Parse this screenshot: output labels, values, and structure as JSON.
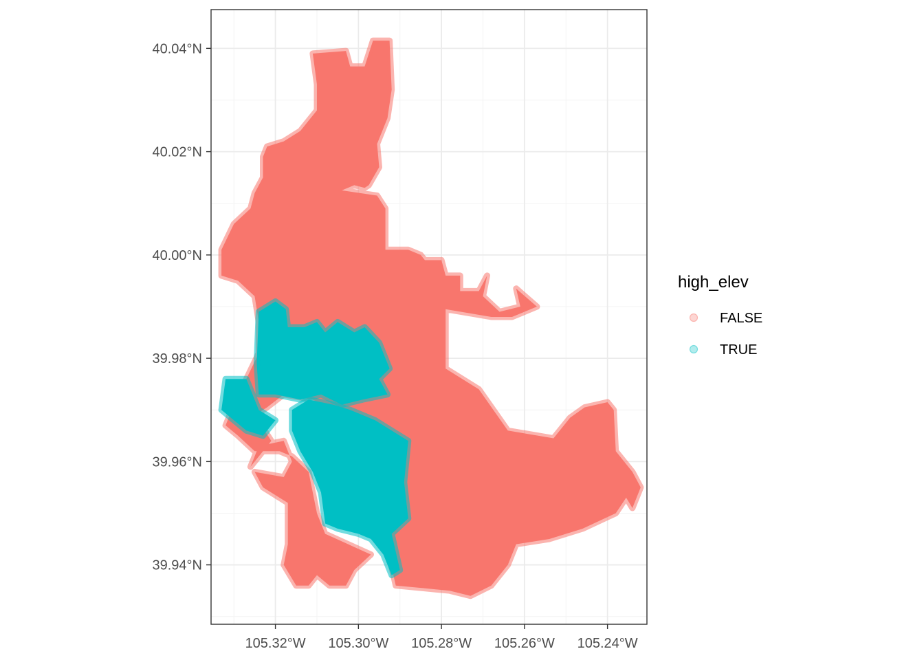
{
  "chart_data": {
    "type": "scatter",
    "title": "",
    "xlabel": "",
    "ylabel": "",
    "xlim": [
      -105.3355,
      -105.2305
    ],
    "ylim": [
      39.9285,
      40.0475
    ],
    "x_ticks": [
      {
        "value": -105.32,
        "label": "105.32°W"
      },
      {
        "value": -105.3,
        "label": "105.30°W"
      },
      {
        "value": -105.28,
        "label": "105.28°W"
      },
      {
        "value": -105.26,
        "label": "105.26°W"
      },
      {
        "value": -105.24,
        "label": "105.24°W"
      }
    ],
    "y_ticks": [
      {
        "value": 39.94,
        "label": "39.94°N"
      },
      {
        "value": 39.96,
        "label": "39.96°N"
      },
      {
        "value": 39.98,
        "label": "39.98°N"
      },
      {
        "value": 40.0,
        "label": "40.00°N"
      },
      {
        "value": 40.02,
        "label": "40.02°N"
      },
      {
        "value": 40.04,
        "label": "40.04°N"
      }
    ],
    "grid": true,
    "legend": {
      "title": "high_elev",
      "position": "right",
      "entries": [
        {
          "label": "FALSE",
          "color": "#F8766D"
        },
        {
          "label": "TRUE",
          "color": "#00BFC4"
        }
      ]
    },
    "series": [
      {
        "name": "FALSE",
        "color": "#F8766D",
        "regions": [
          [
            [
              -105.311,
              40.039
            ],
            [
              -105.303,
              40.0395
            ],
            [
              -105.302,
              40.0365
            ],
            [
              -105.2985,
              40.0365
            ],
            [
              -105.2965,
              40.0415
            ],
            [
              -105.2925,
              40.0415
            ],
            [
              -105.292,
              40.032
            ],
            [
              -105.293,
              40.0265
            ],
            [
              -105.2955,
              40.0215
            ],
            [
              -105.295,
              40.017
            ],
            [
              -105.2975,
              40.0135
            ],
            [
              -105.2985,
              40.013
            ],
            [
              -105.301,
              40.0135
            ],
            [
              -105.304,
              40.0125
            ],
            [
              -105.2955,
              40.0115
            ],
            [
              -105.2935,
              40.009
            ],
            [
              -105.2935,
              40.001
            ],
            [
              -105.288,
              40.001
            ],
            [
              -105.285,
              40.0
            ],
            [
              -105.284,
              39.999
            ],
            [
              -105.28,
              39.999
            ],
            [
              -105.279,
              39.996
            ],
            [
              -105.2755,
              39.996
            ],
            [
              -105.2755,
              39.993
            ],
            [
              -105.271,
              39.993
            ],
            [
              -105.269,
              39.996
            ],
            [
              -105.27,
              39.992
            ],
            [
              -105.266,
              39.989
            ],
            [
              -105.261,
              39.99
            ],
            [
              -105.262,
              39.9935
            ],
            [
              -105.257,
              39.99
            ],
            [
              -105.263,
              39.988
            ],
            [
              -105.268,
              39.988
            ],
            [
              -105.279,
              39.9895
            ],
            [
              -105.279,
              39.978
            ],
            [
              -105.271,
              39.974
            ],
            [
              -105.264,
              39.966
            ],
            [
              -105.253,
              39.9645
            ],
            [
              -105.249,
              39.9685
            ],
            [
              -105.2455,
              39.9705
            ],
            [
              -105.24,
              39.9715
            ],
            [
              -105.2385,
              39.97
            ],
            [
              -105.238,
              39.962
            ],
            [
              -105.234,
              39.958
            ],
            [
              -105.232,
              39.955
            ],
            [
              -105.234,
              39.951
            ],
            [
              -105.2355,
              39.953
            ],
            [
              -105.238,
              39.95
            ],
            [
              -105.246,
              39.947
            ],
            [
              -105.254,
              39.945
            ],
            [
              -105.262,
              39.944
            ],
            [
              -105.264,
              39.94
            ],
            [
              -105.268,
              39.936
            ],
            [
              -105.273,
              39.934
            ],
            [
              -105.278,
              39.935
            ],
            [
              -105.2845,
              39.9355
            ],
            [
              -105.291,
              39.936
            ],
            [
              -105.293,
              39.943
            ],
            [
              -105.295,
              39.946
            ],
            [
              -105.292,
              39.95
            ],
            [
              -105.296,
              39.956
            ],
            [
              -105.293,
              39.962
            ],
            [
              -105.297,
              39.966
            ],
            [
              -105.302,
              39.968
            ],
            [
              -105.311,
              39.972
            ],
            [
              -105.318,
              39.973
            ],
            [
              -105.322,
              39.9705
            ],
            [
              -105.325,
              39.969
            ],
            [
              -105.321,
              39.964
            ],
            [
              -105.326,
              39.959
            ],
            [
              -105.324,
              39.963
            ],
            [
              -105.318,
              39.964
            ],
            [
              -105.316,
              39.96
            ],
            [
              -105.318,
              39.957
            ],
            [
              -105.325,
              39.958
            ],
            [
              -105.323,
              39.955
            ],
            [
              -105.317,
              39.952
            ],
            [
              -105.317,
              39.944
            ],
            [
              -105.318,
              39.94
            ],
            [
              -105.315,
              39.936
            ],
            [
              -105.312,
              39.936
            ],
            [
              -105.31,
              39.938
            ],
            [
              -105.307,
              39.936
            ],
            [
              -105.303,
              39.936
            ],
            [
              -105.301,
              39.939
            ],
            [
              -105.297,
              39.942
            ],
            [
              -105.308,
              39.946
            ],
            [
              -105.31,
              39.95
            ],
            [
              -105.312,
              39.958
            ],
            [
              -105.316,
              39.961
            ],
            [
              -105.319,
              39.962
            ],
            [
              -105.325,
              39.962
            ],
            [
              -105.329,
              39.965
            ],
            [
              -105.332,
              39.967
            ],
            [
              -105.331,
              39.969
            ],
            [
              -105.329,
              39.972
            ],
            [
              -105.327,
              39.976
            ],
            [
              -105.324,
              39.981
            ],
            [
              -105.324,
              39.987
            ],
            [
              -105.325,
              39.992
            ],
            [
              -105.329,
              39.995
            ],
            [
              -105.333,
              39.996
            ],
            [
              -105.333,
              40.001
            ],
            [
              -105.33,
              40.006
            ],
            [
              -105.326,
              40.009
            ],
            [
              -105.325,
              40.012
            ],
            [
              -105.323,
              40.015
            ],
            [
              -105.323,
              40.019
            ],
            [
              -105.322,
              40.021
            ],
            [
              -105.318,
              40.022
            ],
            [
              -105.314,
              40.024
            ],
            [
              -105.312,
              40.026
            ],
            [
              -105.31,
              40.028
            ],
            [
              -105.31,
              40.033
            ]
          ]
        ]
      },
      {
        "name": "TRUE",
        "color": "#00BFC4",
        "regions": [
          [
            [
              -105.324,
              39.989
            ],
            [
              -105.32,
              39.991
            ],
            [
              -105.3175,
              39.9895
            ],
            [
              -105.317,
              39.986
            ],
            [
              -105.313,
              39.986
            ],
            [
              -105.31,
              39.987
            ],
            [
              -105.308,
              39.985
            ],
            [
              -105.305,
              39.987
            ],
            [
              -105.301,
              39.985
            ],
            [
              -105.2985,
              39.986
            ],
            [
              -105.295,
              39.983
            ],
            [
              -105.2925,
              39.978
            ],
            [
              -105.295,
              39.976
            ],
            [
              -105.293,
              39.973
            ],
            [
              -105.299,
              39.972
            ],
            [
              -105.304,
              39.971
            ],
            [
              -105.309,
              39.973
            ],
            [
              -105.314,
              39.972
            ],
            [
              -105.32,
              39.973
            ],
            [
              -105.324,
              39.973
            ],
            [
              -105.3245,
              39.979
            ]
          ],
          [
            [
              -105.332,
              39.976
            ],
            [
              -105.327,
              39.976
            ],
            [
              -105.324,
              39.97
            ],
            [
              -105.32,
              39.968
            ],
            [
              -105.323,
              39.965
            ],
            [
              -105.327,
              39.966
            ],
            [
              -105.33,
              39.968
            ],
            [
              -105.333,
              39.97
            ]
          ],
          [
            [
              -105.312,
              39.972
            ],
            [
              -105.306,
              39.971
            ],
            [
              -105.302,
              39.97
            ],
            [
              -105.296,
              39.968
            ],
            [
              -105.288,
              39.964
            ],
            [
              -105.289,
              39.956
            ],
            [
              -105.288,
              39.949
            ],
            [
              -105.292,
              39.946
            ],
            [
              -105.29,
              39.939
            ],
            [
              -105.292,
              39.938
            ],
            [
              -105.294,
              39.942
            ],
            [
              -105.297,
              39.945
            ],
            [
              -105.3,
              39.946
            ],
            [
              -105.305,
              39.947
            ],
            [
              -105.308,
              39.948
            ],
            [
              -105.309,
              39.954
            ],
            [
              -105.311,
              39.958
            ],
            [
              -105.314,
              39.962
            ],
            [
              -105.316,
              39.966
            ],
            [
              -105.316,
              39.97
            ]
          ]
        ]
      }
    ]
  }
}
